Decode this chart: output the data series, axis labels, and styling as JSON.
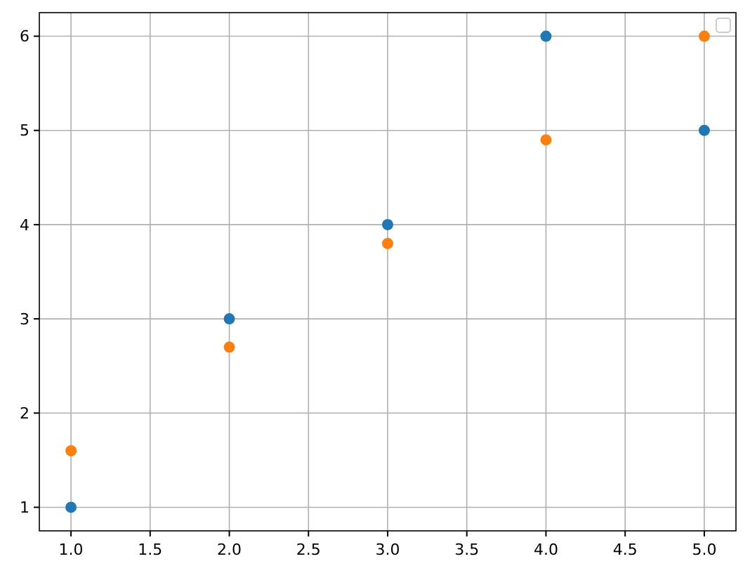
{
  "chart_data": {
    "type": "scatter",
    "x": [
      1,
      2,
      3,
      4,
      5
    ],
    "series": [
      {
        "color": "#1f77b4",
        "values": [
          1,
          3,
          4,
          6,
          5
        ]
      },
      {
        "color": "#ff7f0e",
        "values": [
          1.6,
          2.7,
          3.8,
          4.9,
          6
        ]
      }
    ],
    "xlim": [
      0.8,
      5.2
    ],
    "ylim": [
      0.75,
      6.25
    ],
    "xticks": [
      {
        "value": 1,
        "label": "1.0"
      },
      {
        "value": 1.5,
        "label": "1.5"
      },
      {
        "value": 2,
        "label": "2.0"
      },
      {
        "value": 2.5,
        "label": "2.5"
      },
      {
        "value": 3,
        "label": "3.0"
      },
      {
        "value": 3.5,
        "label": "3.5"
      },
      {
        "value": 4,
        "label": "4.0"
      },
      {
        "value": 4.5,
        "label": "4.5"
      },
      {
        "value": 5,
        "label": "5.0"
      }
    ],
    "yticks": [
      1,
      2,
      3,
      4,
      5,
      6
    ],
    "grid": true,
    "marker": "circle"
  }
}
